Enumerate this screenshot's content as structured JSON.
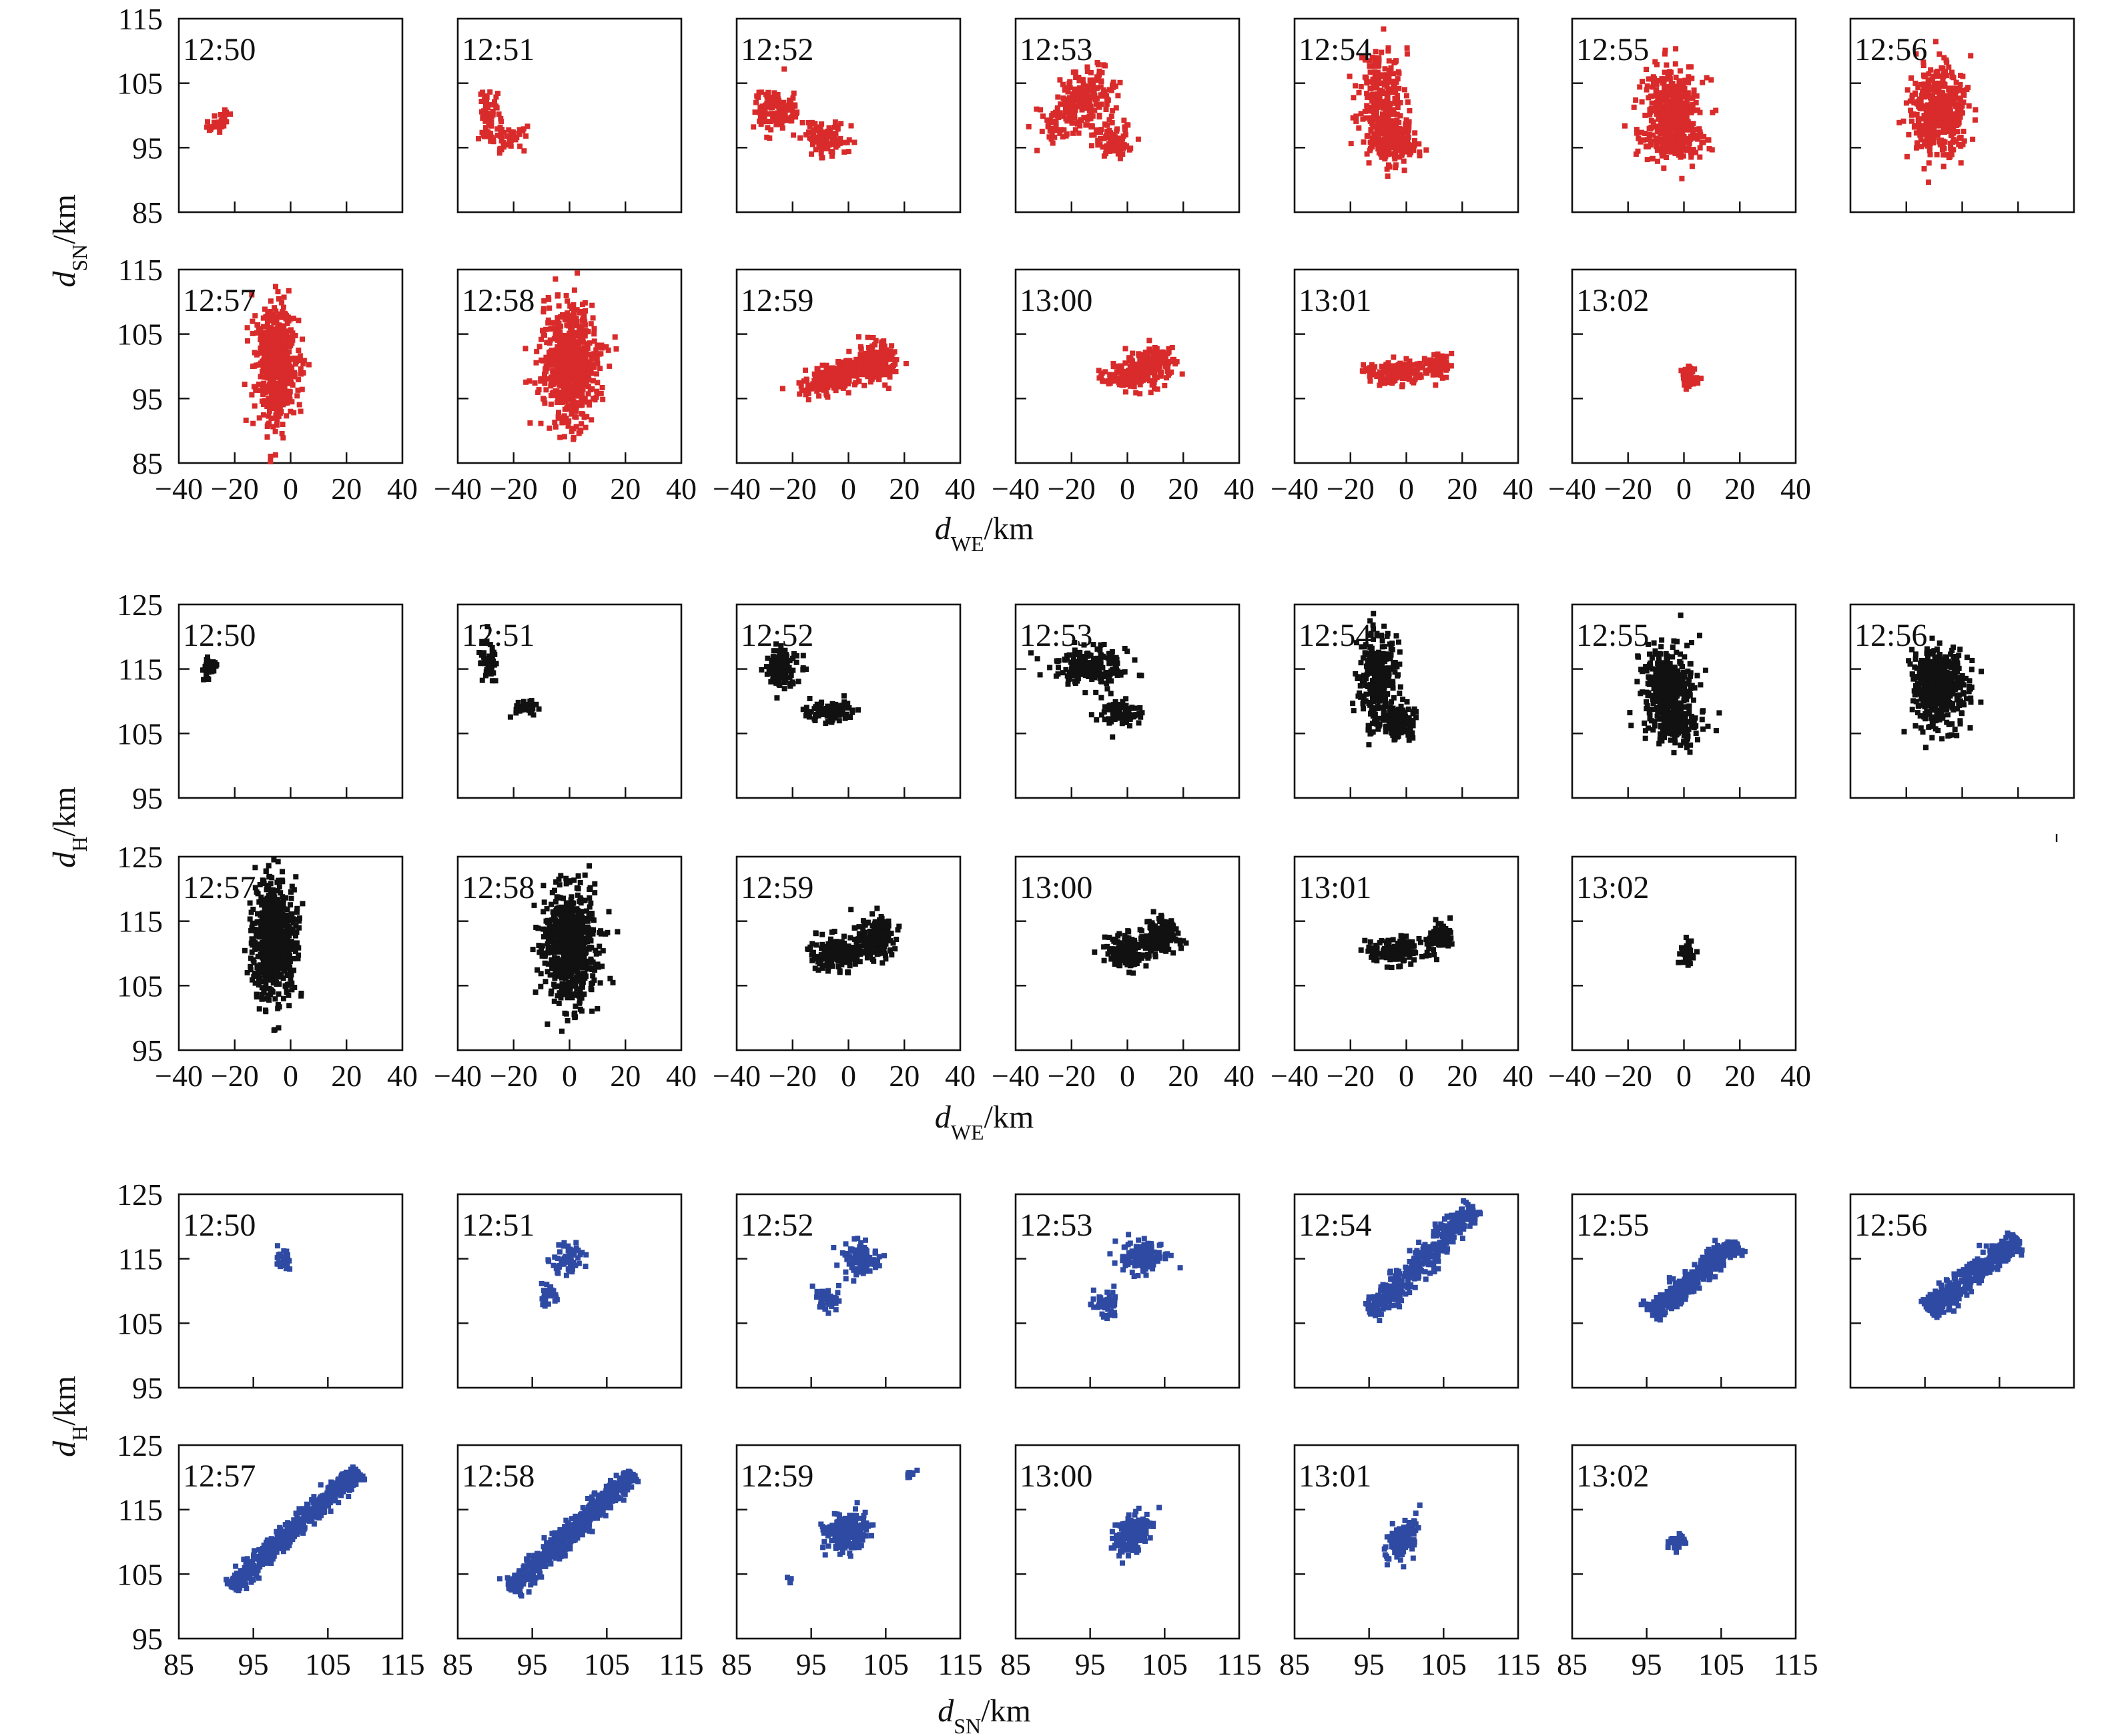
{
  "chart_data": [
    {
      "type": "scatter",
      "panel_group": "WE-SN projection",
      "color": "#d92b2b",
      "xlabel": {
        "var": "d",
        "sub": "WE",
        "unit": "/km"
      },
      "ylabel": {
        "var": "d",
        "sub": "SN",
        "unit": "/km"
      },
      "xlim": [
        -40,
        40
      ],
      "ylim": [
        85,
        115
      ],
      "xticks": [
        "−40",
        "−20",
        "0",
        "20",
        "40"
      ],
      "yticks": [
        "85",
        "95",
        "105",
        "115"
      ],
      "xtick_values": [
        -40,
        -20,
        0,
        20,
        40
      ],
      "ytick_values": [
        85,
        95,
        105,
        115
      ],
      "panels": [
        {
          "time": "12:50",
          "clusters": [
            {
              "x": -26,
              "y": 98.8,
              "sx": 2,
              "sy": 0.8,
              "n": 30,
              "rot": 0.35
            }
          ]
        },
        {
          "time": "12:51",
          "clusters": [
            {
              "x": -29,
              "y": 99.5,
              "sx": 1.6,
              "sy": 2.2,
              "n": 60,
              "rot": 0
            },
            {
              "x": -22,
              "y": 96.5,
              "sx": 2.8,
              "sy": 1,
              "n": 50,
              "rot": 0
            }
          ]
        },
        {
          "time": "12:52",
          "clusters": [
            {
              "x": -26,
              "y": 100.8,
              "sx": 3.8,
              "sy": 1.6,
              "n": 140,
              "rot": 0
            },
            {
              "x": -8,
              "y": 96.5,
              "sx": 4,
              "sy": 1.3,
              "n": 110,
              "rot": 0
            }
          ]
        },
        {
          "time": "12:53",
          "clusters": [
            {
              "x": -17,
              "y": 101.6,
              "sx": 6,
              "sy": 2.2,
              "n": 240,
              "rot": 0.2
            },
            {
              "x": -5,
              "y": 96,
              "sx": 3.5,
              "sy": 1.2,
              "n": 90,
              "rot": 0
            }
          ]
        },
        {
          "time": "12:54",
          "clusters": [
            {
              "x": -9,
              "y": 102.5,
              "sx": 4,
              "sy": 4,
              "n": 260,
              "rot": 0
            },
            {
              "x": -4,
              "y": 96,
              "sx": 4,
              "sy": 1.8,
              "n": 160,
              "rot": 0
            }
          ]
        },
        {
          "time": "12:55",
          "clusters": [
            {
              "x": -4,
              "y": 101,
              "sx": 5,
              "sy": 3.5,
              "n": 320,
              "rot": 0
            },
            {
              "x": -4,
              "y": 96,
              "sx": 5,
              "sy": 1.5,
              "n": 160,
              "rot": 0
            }
          ]
        },
        {
          "time": "12:56",
          "clusters": [
            {
              "x": -8,
              "y": 100.5,
              "sx": 5,
              "sy": 3.3,
              "n": 460,
              "rot": 0
            }
          ]
        },
        {
          "time": "12:57",
          "clusters": [
            {
              "x": -5,
              "y": 100.5,
              "sx": 3.6,
              "sy": 4.4,
              "n": 650,
              "rot": 0
            }
          ]
        },
        {
          "time": "12:58",
          "clusters": [
            {
              "x": 0,
              "y": 100.5,
              "sx": 5,
              "sy": 4.4,
              "n": 680,
              "rot": 0
            }
          ]
        },
        {
          "time": "12:59",
          "clusters": [
            {
              "x": -5,
              "y": 98.2,
              "sx": 6,
              "sy": 1.2,
              "n": 200,
              "rot": 0.15
            },
            {
              "x": 10,
              "y": 100.5,
              "sx": 4,
              "sy": 1.4,
              "n": 170,
              "rot": 0
            }
          ]
        },
        {
          "time": "13:00",
          "clusters": [
            {
              "x": 0,
              "y": 98.5,
              "sx": 4.5,
              "sy": 1,
              "n": 160,
              "rot": 0
            },
            {
              "x": 10,
              "y": 100.6,
              "sx": 3.5,
              "sy": 1.2,
              "n": 140,
              "rot": 0
            }
          ]
        },
        {
          "time": "13:01",
          "clusters": [
            {
              "x": -4,
              "y": 98.9,
              "sx": 5,
              "sy": 0.9,
              "n": 150,
              "rot": 0
            },
            {
              "x": 11,
              "y": 100.2,
              "sx": 2.5,
              "sy": 0.9,
              "n": 80,
              "rot": 0
            }
          ]
        },
        {
          "time": "13:02",
          "clusters": [
            {
              "x": 2,
              "y": 98.6,
              "sx": 1.5,
              "sy": 0.9,
              "n": 40,
              "rot": 0
            }
          ]
        }
      ]
    },
    {
      "type": "scatter",
      "panel_group": "WE-H projection",
      "color": "#111111",
      "xlabel": {
        "var": "d",
        "sub": "WE",
        "unit": "/km"
      },
      "ylabel": {
        "var": "d",
        "sub": "H",
        "unit": "/km"
      },
      "xlim": [
        -40,
        40
      ],
      "ylim": [
        95,
        125
      ],
      "xticks": [
        "−40",
        "−20",
        "0",
        "20",
        "40"
      ],
      "yticks": [
        "95",
        "105",
        "115",
        "125"
      ],
      "xtick_values": [
        -40,
        -20,
        0,
        20,
        40
      ],
      "ytick_values": [
        95,
        105,
        115,
        125
      ],
      "panels": [
        {
          "time": "12:50",
          "clusters": [
            {
              "x": -29,
              "y": 115,
              "sx": 1.5,
              "sy": 1,
              "n": 30,
              "rot": 0
            }
          ]
        },
        {
          "time": "12:51",
          "clusters": [
            {
              "x": -29,
              "y": 115.8,
              "sx": 1.5,
              "sy": 1.8,
              "n": 50,
              "rot": 0
            },
            {
              "x": -15,
              "y": 109,
              "sx": 2,
              "sy": 0.7,
              "n": 35,
              "rot": 0
            }
          ]
        },
        {
          "time": "12:52",
          "clusters": [
            {
              "x": -24,
              "y": 115,
              "sx": 3,
              "sy": 1.4,
              "n": 130,
              "rot": 0
            },
            {
              "x": -6,
              "y": 108.5,
              "sx": 4,
              "sy": 0.9,
              "n": 90,
              "rot": 0
            }
          ]
        },
        {
          "time": "12:53",
          "clusters": [
            {
              "x": -14,
              "y": 115.3,
              "sx": 6,
              "sy": 1.4,
              "n": 200,
              "rot": 0
            },
            {
              "x": -2,
              "y": 108,
              "sx": 4,
              "sy": 1,
              "n": 90,
              "rot": 0
            }
          ]
        },
        {
          "time": "12:54",
          "clusters": [
            {
              "x": -10,
              "y": 113.5,
              "sx": 3.5,
              "sy": 3.5,
              "n": 260,
              "rot": 0
            },
            {
              "x": -4,
              "y": 107,
              "sx": 3.5,
              "sy": 1.5,
              "n": 150,
              "rot": 0
            }
          ]
        },
        {
          "time": "12:55",
          "clusters": [
            {
              "x": -6,
              "y": 112.5,
              "sx": 4.5,
              "sy": 3,
              "n": 320,
              "rot": 0
            },
            {
              "x": -2,
              "y": 106.5,
              "sx": 4.5,
              "sy": 1.5,
              "n": 150,
              "rot": 0
            }
          ]
        },
        {
          "time": "12:56",
          "clusters": [
            {
              "x": -8,
              "y": 112,
              "sx": 5,
              "sy": 3,
              "n": 440,
              "rot": 0
            }
          ]
        },
        {
          "time": "12:57",
          "clusters": [
            {
              "x": -6,
              "y": 112,
              "sx": 3.6,
              "sy": 4.5,
              "n": 650,
              "rot": 0
            }
          ]
        },
        {
          "time": "12:58",
          "clusters": [
            {
              "x": 0,
              "y": 111,
              "sx": 5,
              "sy": 4.5,
              "n": 680,
              "rot": 0
            }
          ]
        },
        {
          "time": "12:59",
          "clusters": [
            {
              "x": -4,
              "y": 110,
              "sx": 5,
              "sy": 1.3,
              "n": 190,
              "rot": 0
            },
            {
              "x": 10,
              "y": 112.5,
              "sx": 3.5,
              "sy": 1.5,
              "n": 160,
              "rot": 0
            }
          ]
        },
        {
          "time": "13:00",
          "clusters": [
            {
              "x": 0,
              "y": 110.3,
              "sx": 4,
              "sy": 1.3,
              "n": 160,
              "rot": 0
            },
            {
              "x": 12,
              "y": 112.8,
              "sx": 3.5,
              "sy": 1.3,
              "n": 140,
              "rot": 0
            }
          ]
        },
        {
          "time": "13:01",
          "clusters": [
            {
              "x": -4,
              "y": 110.5,
              "sx": 5,
              "sy": 1,
              "n": 150,
              "rot": 0
            },
            {
              "x": 12,
              "y": 112.5,
              "sx": 2.2,
              "sy": 1,
              "n": 70,
              "rot": 0
            }
          ]
        },
        {
          "time": "13:02",
          "clusters": [
            {
              "x": 1,
              "y": 110,
              "sx": 1.4,
              "sy": 1,
              "n": 40,
              "rot": 0
            }
          ]
        }
      ]
    },
    {
      "type": "scatter",
      "panel_group": "SN-H projection",
      "color": "#2e4aa3",
      "xlabel": {
        "var": "d",
        "sub": "SN",
        "unit": "/km"
      },
      "ylabel": {
        "var": "d",
        "sub": "H",
        "unit": "/km"
      },
      "xlim": [
        85,
        115
      ],
      "ylim": [
        95,
        125
      ],
      "xticks": [
        "85",
        "95",
        "105",
        "115"
      ],
      "yticks": [
        "95",
        "105",
        "115",
        "125"
      ],
      "xtick_values": [
        85,
        95,
        105,
        115
      ],
      "ytick_values": [
        95,
        105,
        115,
        125
      ],
      "panels": [
        {
          "time": "12:50",
          "clusters": [
            {
              "x": 99,
              "y": 114.7,
              "sx": 0.6,
              "sy": 0.9,
              "n": 30,
              "rot": 0
            }
          ]
        },
        {
          "time": "12:51",
          "clusters": [
            {
              "x": 99.8,
              "y": 115,
              "sx": 0.9,
              "sy": 1.3,
              "n": 60,
              "rot": -0.6
            },
            {
              "x": 97,
              "y": 109.5,
              "sx": 0.6,
              "sy": 1.1,
              "n": 30,
              "rot": 0
            }
          ]
        },
        {
          "time": "12:52",
          "clusters": [
            {
              "x": 101.5,
              "y": 115,
              "sx": 1.2,
              "sy": 1.3,
              "n": 110,
              "rot": 0
            },
            {
              "x": 97.2,
              "y": 108.5,
              "sx": 0.9,
              "sy": 0.9,
              "n": 50,
              "rot": 0
            }
          ]
        },
        {
          "time": "12:53",
          "clusters": [
            {
              "x": 102,
              "y": 115.3,
              "sx": 1.5,
              "sy": 1.2,
              "n": 130,
              "rot": 0
            },
            {
              "x": 97,
              "y": 108,
              "sx": 0.9,
              "sy": 1.1,
              "n": 50,
              "rot": 0
            }
          ]
        },
        {
          "time": "12:54",
          "line": {
            "x0": 95,
            "y0": 106.5,
            "x1": 109,
            "y1": 123,
            "w": 0.9,
            "n": 420
          }
        },
        {
          "time": "12:55",
          "line": {
            "x0": 95.5,
            "y0": 106.5,
            "x1": 107,
            "y1": 117.5,
            "w": 0.8,
            "n": 420
          }
        },
        {
          "time": "12:56",
          "line": {
            "x0": 95.5,
            "y0": 107,
            "x1": 107.5,
            "y1": 118,
            "w": 0.8,
            "n": 440
          }
        },
        {
          "time": "12:57",
          "line": {
            "x0": 92,
            "y0": 103,
            "x1": 109,
            "y1": 121,
            "w": 0.7,
            "n": 620
          }
        },
        {
          "time": "12:58",
          "line": {
            "x0": 92,
            "y0": 102.5,
            "x1": 108.5,
            "y1": 120.5,
            "w": 0.7,
            "n": 620
          }
        },
        {
          "time": "12:59",
          "clusters": [
            {
              "x": 100,
              "y": 111.5,
              "sx": 1.4,
              "sy": 1.5,
              "n": 200,
              "rot": -0.6
            },
            {
              "x": 108.5,
              "y": 120.5,
              "sx": 0.5,
              "sy": 0.3,
              "n": 8,
              "rot": 0
            },
            {
              "x": 92,
              "y": 104,
              "sx": 0.3,
              "sy": 0.3,
              "n": 4,
              "rot": 0
            }
          ]
        },
        {
          "time": "13:00",
          "clusters": [
            {
              "x": 100.5,
              "y": 111.5,
              "sx": 1,
              "sy": 1.5,
              "n": 190,
              "rot": -0.6
            }
          ]
        },
        {
          "time": "13:01",
          "clusters": [
            {
              "x": 99.5,
              "y": 110.5,
              "sx": 0.9,
              "sy": 1.5,
              "n": 160,
              "rot": -0.5
            }
          ]
        },
        {
          "time": "13:02",
          "clusters": [
            {
              "x": 99.3,
              "y": 110,
              "sx": 0.6,
              "sy": 0.6,
              "n": 40,
              "rot": 0
            }
          ]
        }
      ]
    }
  ]
}
